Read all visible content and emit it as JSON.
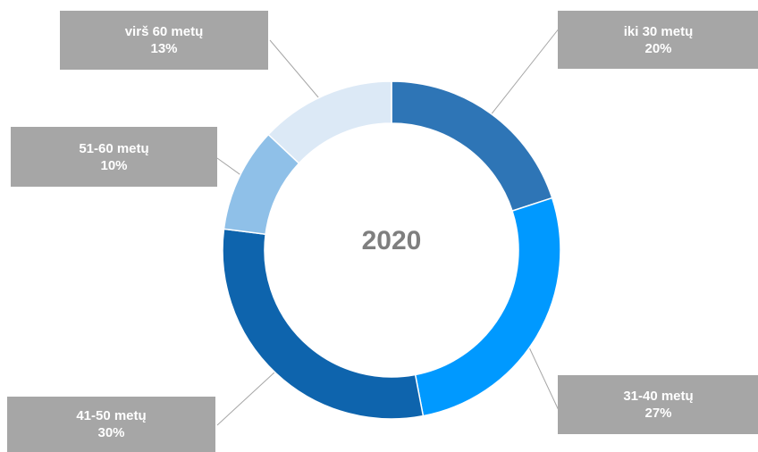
{
  "chart_data": {
    "type": "pie",
    "variant": "donut",
    "center_label": "2020",
    "slices": [
      {
        "label": "iki 30 metų",
        "value": 20,
        "value_label": "20%",
        "color": "#2e75b6"
      },
      {
        "label": "31-40 metų",
        "value": 27,
        "value_label": "27%",
        "color": "#0099ff"
      },
      {
        "label": "41-50 metų",
        "value": 30,
        "value_label": "30%",
        "color": "#0e64ad"
      },
      {
        "label": "51-60 metų",
        "value": 10,
        "value_label": "10%",
        "color": "#8fc0e8"
      },
      {
        "label": "virš 60 metų",
        "value": 13,
        "value_label": "13%",
        "color": "#dce9f6"
      }
    ],
    "callout_color": "#a6a6a6",
    "leader_color": "#a6a6a6"
  }
}
